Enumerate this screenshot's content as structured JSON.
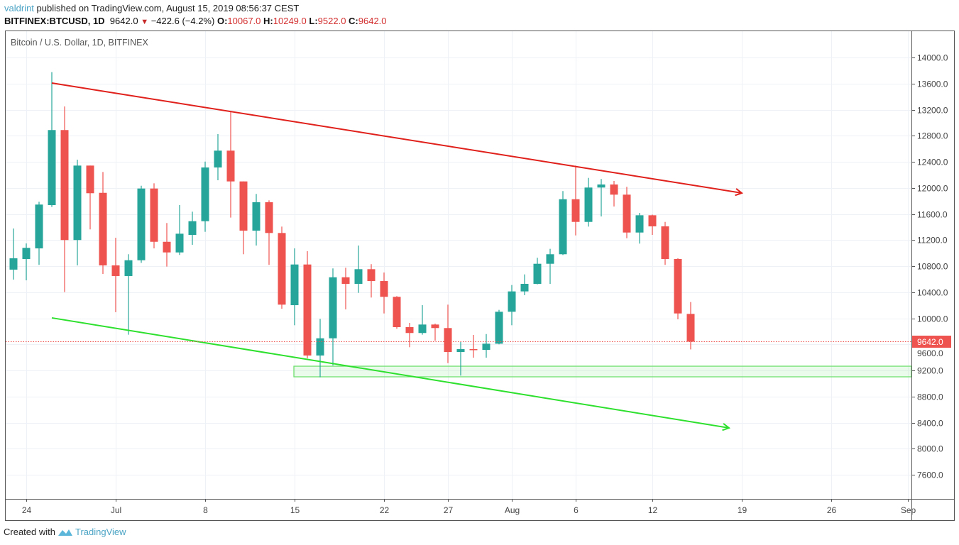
{
  "header": {
    "author": "valdrint",
    "published_text": " published on TradingView.com, August 15, 2019 08:56:37 CEST",
    "symbol": "BITFINEX:BTCUSD, 1D",
    "last_price": "9642.0",
    "change": "−422.6 (−4.2%)",
    "change_icon": "triangle-down-icon",
    "open_label": "O:",
    "open": "10067.0",
    "high_label": "H:",
    "high": "10249.0",
    "low_label": "L:",
    "low": "9522.0",
    "close_label": "C:",
    "close": "9642.0"
  },
  "footer": {
    "created_with": "Created with",
    "brand": "TradingView",
    "logo_icon": "tradingview-logo-icon"
  },
  "colors": {
    "up": "#26a69a",
    "down": "#ef5350",
    "resistance_line": "#e0201b",
    "support_line": "#2ee02e",
    "zone": "#6fe06f",
    "last_price": "#ef5350"
  },
  "chart_data": {
    "type": "candlestick",
    "title": "Bitcoin / U.S. Dollar, 1D, BITFINEX",
    "ylim": [
      7400,
      14400
    ],
    "grid": true,
    "y_ticks": [
      "14000.0",
      "13600.0",
      "13200.0",
      "12800.0",
      "12400.0",
      "12000.0",
      "11600.0",
      "11200.0",
      "10800.0",
      "10400.0",
      "10000.0",
      "9600.0",
      "9200.0",
      "8800.0",
      "8400.0",
      "8000.0",
      "7600.0"
    ],
    "x_ticks": [
      {
        "date": "2019-06-24",
        "label": "24"
      },
      {
        "date": "2019-07-01",
        "label": "Jul"
      },
      {
        "date": "2019-07-08",
        "label": "8"
      },
      {
        "date": "2019-07-15",
        "label": "15"
      },
      {
        "date": "2019-07-22",
        "label": "22"
      },
      {
        "date": "2019-07-27",
        "label": "27"
      },
      {
        "date": "2019-08-01",
        "label": "Aug"
      },
      {
        "date": "2019-08-06",
        "label": "6"
      },
      {
        "date": "2019-08-12",
        "label": "12"
      },
      {
        "date": "2019-08-19",
        "label": "19"
      },
      {
        "date": "2019-08-26",
        "label": "26"
      },
      {
        "date": "2019-09-01",
        "label": "Sep"
      }
    ],
    "last_price_label": "9642.0",
    "last_price": 9642,
    "candles": [
      {
        "date": "2019-06-23",
        "o": 10746,
        "h": 11377,
        "l": 10593,
        "c": 10920
      },
      {
        "date": "2019-06-24",
        "o": 10909,
        "h": 11148,
        "l": 10582,
        "c": 11080
      },
      {
        "date": "2019-06-25",
        "o": 11072,
        "h": 11787,
        "l": 10819,
        "c": 11744
      },
      {
        "date": "2019-06-26",
        "o": 11736,
        "h": 13775,
        "l": 11707,
        "c": 12887
      },
      {
        "date": "2019-06-27",
        "o": 12887,
        "h": 13249,
        "l": 10401,
        "c": 11200
      },
      {
        "date": "2019-06-28",
        "o": 11200,
        "h": 12433,
        "l": 10811,
        "c": 12342
      },
      {
        "date": "2019-06-29",
        "o": 12342,
        "h": 12342,
        "l": 11363,
        "c": 11918
      },
      {
        "date": "2019-06-30",
        "o": 11924,
        "h": 12244,
        "l": 10680,
        "c": 10811
      },
      {
        "date": "2019-07-01",
        "o": 10811,
        "h": 11235,
        "l": 10093,
        "c": 10648
      },
      {
        "date": "2019-07-02",
        "o": 10648,
        "h": 10982,
        "l": 9748,
        "c": 10890
      },
      {
        "date": "2019-07-03",
        "o": 10890,
        "h": 12033,
        "l": 10850,
        "c": 11990
      },
      {
        "date": "2019-07-04",
        "o": 11990,
        "h": 12070,
        "l": 11072,
        "c": 11173
      },
      {
        "date": "2019-07-05",
        "o": 11173,
        "h": 11461,
        "l": 10793,
        "c": 11010
      },
      {
        "date": "2019-07-06",
        "o": 11010,
        "h": 11736,
        "l": 10971,
        "c": 11297
      },
      {
        "date": "2019-07-07",
        "o": 11279,
        "h": 11635,
        "l": 11127,
        "c": 11489
      },
      {
        "date": "2019-07-08",
        "o": 11489,
        "h": 12403,
        "l": 11326,
        "c": 12313
      },
      {
        "date": "2019-07-09",
        "o": 12313,
        "h": 12825,
        "l": 12117,
        "c": 12571
      },
      {
        "date": "2019-07-10",
        "o": 12571,
        "h": 13176,
        "l": 11544,
        "c": 12099
      },
      {
        "date": "2019-07-11",
        "o": 12099,
        "h": 12099,
        "l": 10982,
        "c": 11344
      },
      {
        "date": "2019-07-12",
        "o": 11344,
        "h": 11907,
        "l": 11116,
        "c": 11780
      },
      {
        "date": "2019-07-13",
        "o": 11780,
        "h": 11809,
        "l": 10819,
        "c": 11308
      },
      {
        "date": "2019-07-14",
        "o": 11308,
        "h": 11406,
        "l": 10147,
        "c": 10209
      },
      {
        "date": "2019-07-15",
        "o": 10201,
        "h": 11072,
        "l": 9893,
        "c": 10825
      },
      {
        "date": "2019-07-16",
        "o": 10825,
        "h": 11029,
        "l": 9385,
        "c": 9429
      },
      {
        "date": "2019-07-17",
        "o": 9429,
        "h": 9991,
        "l": 9095,
        "c": 9693
      },
      {
        "date": "2019-07-18",
        "o": 9693,
        "h": 10764,
        "l": 9276,
        "c": 10629
      },
      {
        "date": "2019-07-19",
        "o": 10629,
        "h": 10775,
        "l": 10136,
        "c": 10528
      },
      {
        "date": "2019-07-20",
        "o": 10528,
        "h": 11116,
        "l": 10390,
        "c": 10753
      },
      {
        "date": "2019-07-21",
        "o": 10753,
        "h": 10830,
        "l": 10318,
        "c": 10571
      },
      {
        "date": "2019-07-22",
        "o": 10571,
        "h": 10702,
        "l": 10074,
        "c": 10329
      },
      {
        "date": "2019-07-23",
        "o": 10329,
        "h": 10340,
        "l": 9839,
        "c": 9864
      },
      {
        "date": "2019-07-24",
        "o": 9864,
        "h": 9929,
        "l": 9556,
        "c": 9774
      },
      {
        "date": "2019-07-25",
        "o": 9774,
        "h": 10201,
        "l": 9748,
        "c": 9904
      },
      {
        "date": "2019-07-26",
        "o": 9904,
        "h": 9918,
        "l": 9657,
        "c": 9850
      },
      {
        "date": "2019-07-27",
        "o": 9850,
        "h": 10209,
        "l": 9312,
        "c": 9483
      },
      {
        "date": "2019-07-28",
        "o": 9483,
        "h": 9639,
        "l": 9121,
        "c": 9527
      },
      {
        "date": "2019-07-29",
        "o": 9527,
        "h": 9744,
        "l": 9396,
        "c": 9515
      },
      {
        "date": "2019-07-30",
        "o": 9515,
        "h": 9758,
        "l": 9396,
        "c": 9610
      },
      {
        "date": "2019-07-31",
        "o": 9610,
        "h": 10129,
        "l": 9600,
        "c": 10100
      },
      {
        "date": "2019-08-01",
        "o": 10100,
        "h": 10510,
        "l": 9893,
        "c": 10412
      },
      {
        "date": "2019-08-02",
        "o": 10412,
        "h": 10673,
        "l": 10354,
        "c": 10528
      },
      {
        "date": "2019-08-03",
        "o": 10528,
        "h": 10928,
        "l": 10520,
        "c": 10836
      },
      {
        "date": "2019-08-04",
        "o": 10836,
        "h": 11065,
        "l": 10528,
        "c": 10982
      },
      {
        "date": "2019-08-05",
        "o": 10982,
        "h": 11951,
        "l": 10970,
        "c": 11826
      },
      {
        "date": "2019-08-06",
        "o": 11826,
        "h": 12342,
        "l": 11271,
        "c": 11478
      },
      {
        "date": "2019-08-07",
        "o": 11478,
        "h": 12153,
        "l": 11406,
        "c": 12005
      },
      {
        "date": "2019-08-08",
        "o": 12005,
        "h": 12136,
        "l": 11562,
        "c": 12052
      },
      {
        "date": "2019-08-09",
        "o": 12052,
        "h": 12106,
        "l": 11714,
        "c": 11896
      },
      {
        "date": "2019-08-10",
        "o": 11896,
        "h": 12016,
        "l": 11228,
        "c": 11315
      },
      {
        "date": "2019-08-11",
        "o": 11315,
        "h": 11616,
        "l": 11145,
        "c": 11580
      },
      {
        "date": "2019-08-12",
        "o": 11580,
        "h": 11590,
        "l": 11279,
        "c": 11410
      },
      {
        "date": "2019-08-13",
        "o": 11410,
        "h": 11478,
        "l": 10819,
        "c": 10909
      },
      {
        "date": "2019-08-14",
        "o": 10909,
        "h": 10920,
        "l": 9984,
        "c": 10074
      },
      {
        "date": "2019-08-15",
        "o": 10067,
        "h": 10249,
        "l": 9522,
        "c": 9642
      }
    ],
    "annotations": {
      "resistance_trendline": {
        "from": {
          "date": "2019-06-26",
          "price": 13608
        },
        "to": {
          "date": "2019-08-19",
          "price": 11921
        },
        "arrow": true
      },
      "support_trendline": {
        "from": {
          "date": "2019-06-26",
          "price": 10006
        },
        "to": {
          "date": "2019-08-18",
          "price": 8318
        },
        "arrow": true
      },
      "support_zone": {
        "from_date": "2019-07-15",
        "price_top": 9265,
        "price_bottom": 9102,
        "extends_right": true
      }
    }
  }
}
